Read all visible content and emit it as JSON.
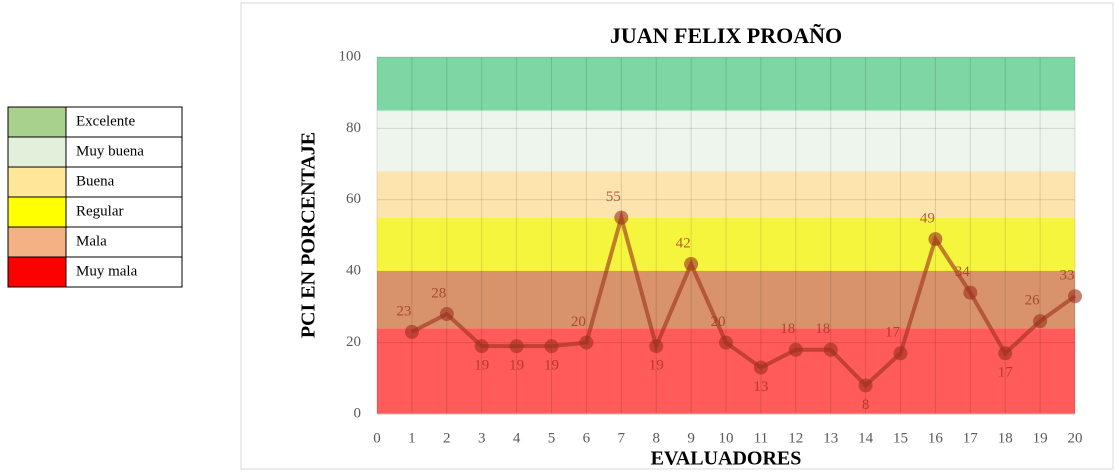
{
  "chart_data": {
    "type": "line",
    "title": "JUAN FELIX PROAÑO",
    "x_label": "EVALUADORES",
    "y_label": "PCI EN PORCENTAJE",
    "x": [
      1,
      2,
      3,
      4,
      5,
      6,
      7,
      8,
      9,
      10,
      11,
      12,
      13,
      14,
      15,
      16,
      17,
      18,
      19,
      20
    ],
    "series": [
      {
        "color": "#9c2f1c",
        "values": [
          23,
          28,
          19,
          19,
          19,
          20,
          55,
          19,
          42,
          20,
          13,
          18,
          18,
          8,
          17,
          49,
          34,
          17,
          26,
          33
        ]
      }
    ],
    "xlim": [
      0,
      20
    ],
    "xticks": [
      0,
      1,
      2,
      3,
      4,
      5,
      6,
      7,
      8,
      9,
      10,
      11,
      12,
      13,
      14,
      15,
      16,
      17,
      18,
      19,
      20
    ],
    "ylim": [
      0,
      100
    ],
    "yticks": [
      0,
      20,
      40,
      60,
      80,
      100
    ],
    "bands": [
      {
        "name": "Excelente",
        "color": "#a9d18e",
        "band_color": "#7dd6a3",
        "lower": 85,
        "upper": 100
      },
      {
        "name": "Muy buena",
        "color": "#e2efda",
        "band_color": "#eef5ec",
        "lower": 68,
        "upper": 85
      },
      {
        "name": "Buena",
        "color": "#ffe699",
        "band_color": "#fde4ae",
        "lower": 55,
        "upper": 68
      },
      {
        "name": "Regular",
        "color": "#ffff00",
        "band_color": "#f6f53e",
        "lower": 40,
        "upper": 55
      },
      {
        "name": "Mala",
        "color": "#f4b183",
        "band_color": "#d8936a",
        "lower": 24,
        "upper": 40
      },
      {
        "name": "Muy mala",
        "color": "#ff0000",
        "band_color": "#ff5b5b",
        "lower": 0,
        "upper": 24
      }
    ]
  }
}
